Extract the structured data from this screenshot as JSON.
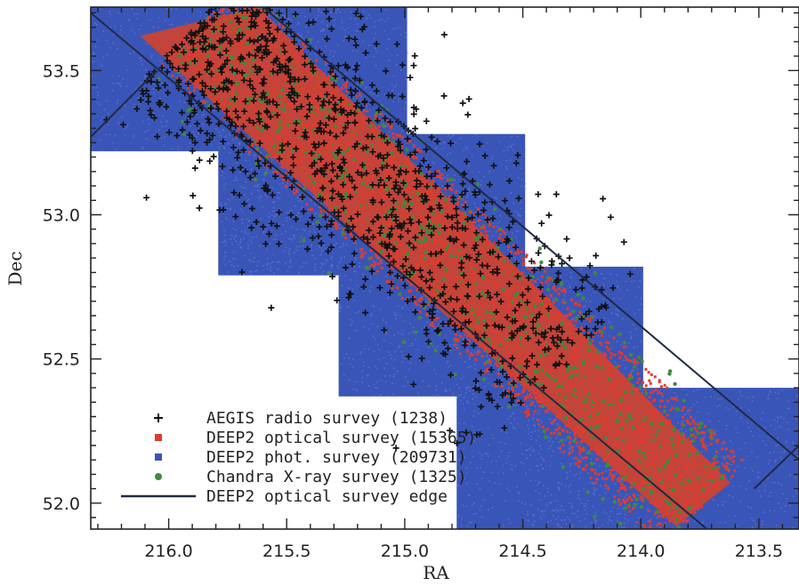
{
  "chart_data": {
    "type": "scatter",
    "title": "",
    "xlabel": "RA",
    "ylabel": "Dec",
    "xlim": [
      216.33,
      213.33
    ],
    "ylim": [
      51.91,
      53.72
    ],
    "x_reversed": true,
    "xticks": [
      "216.0",
      "215.5",
      "215.0",
      "214.5",
      "214.0",
      "213.5"
    ],
    "xtick_values": [
      216.0,
      215.5,
      215.0,
      214.5,
      214.0,
      213.5
    ],
    "yticks": [
      "52.0",
      "52.5",
      "53.0",
      "53.5"
    ],
    "ytick_values": [
      52.0,
      52.5,
      53.0,
      53.5
    ],
    "colors": {
      "radio": "#111111",
      "optical": "#e23a2e",
      "phot": "#3a55b8",
      "xray": "#3f8a3a",
      "edge": "#1f2a44"
    },
    "phot_fields": [
      {
        "ra": [
          216.33,
          215.29
        ],
        "dec": [
          53.22,
          53.72
        ]
      },
      {
        "ra": [
          215.79,
          214.99
        ],
        "dec": [
          52.79,
          53.72
        ]
      },
      {
        "ra": [
          215.78,
          215.29
        ],
        "dec": [
          52.79,
          53.22
        ]
      },
      {
        "ra": [
          215.28,
          214.49
        ],
        "dec": [
          52.37,
          53.28
        ]
      },
      {
        "ra": [
          214.78,
          213.99
        ],
        "dec": [
          51.91,
          52.82
        ]
      },
      {
        "ra": [
          214.49,
          213.33
        ],
        "dec": [
          51.91,
          52.4
        ]
      }
    ],
    "optical_strip": {
      "corners": [
        {
          "ra": 216.12,
          "dec": 53.62
        },
        {
          "ra": 215.62,
          "dec": 53.72
        },
        {
          "ra": 213.62,
          "dec": 52.07
        },
        {
          "ra": 213.85,
          "dec": 51.92
        }
      ]
    },
    "edge_lines": [
      {
        "ra": [
          216.33,
          213.72
        ],
        "dec": [
          53.7,
          51.91
        ]
      },
      {
        "ra": [
          215.6,
          213.33
        ],
        "dec": [
          53.72,
          52.15
        ]
      },
      {
        "ra": [
          216.33,
          216.05
        ],
        "dec": [
          53.27,
          53.5
        ]
      },
      {
        "ra": [
          213.52,
          213.33
        ],
        "dec": [
          52.05,
          52.2
        ]
      }
    ],
    "legend": {
      "placement": "bottom-left",
      "entries": [
        {
          "marker": "plus",
          "series": "radio",
          "label": "AEGIS radio survey (1238)"
        },
        {
          "marker": "square",
          "series": "optical",
          "label": "DEEP2 optical survey (15365)"
        },
        {
          "marker": "square",
          "series": "phot",
          "label": "DEEP2 phot. survey (209731)"
        },
        {
          "marker": "circle",
          "series": "xray",
          "label": "Chandra X-ray survey (1325)"
        },
        {
          "marker": "line",
          "series": "edge",
          "label": "DEEP2 optical survey edge"
        }
      ]
    },
    "series": [
      {
        "name": "AEGIS radio survey (1238)",
        "count": 1238
      },
      {
        "name": "DEEP2 optical survey (15365)",
        "count": 15365
      },
      {
        "name": "DEEP2 phot. survey (209731)",
        "count": 209731
      },
      {
        "name": "Chandra X-ray survey (1325)",
        "count": 1325
      }
    ]
  }
}
